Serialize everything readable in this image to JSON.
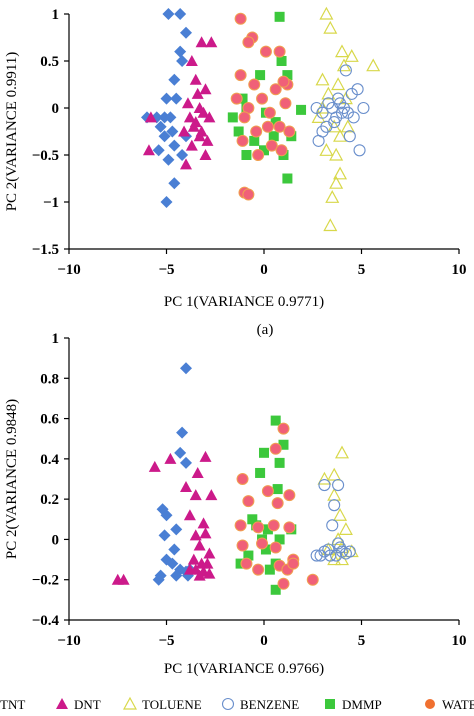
{
  "colors": {
    "TNT": "#4a7fd4",
    "DNT": "#cc1a8a",
    "TOLUENE": "#d8d84a",
    "BENZENE": "#6a8fcc",
    "DMMP": "#3cc83c",
    "WATER": "#f06078",
    "WATER_legend": "#f07030"
  },
  "legend": {
    "items": [
      {
        "label": "TNT",
        "marker": "diamond"
      },
      {
        "label": "DNT",
        "marker": "triangle"
      },
      {
        "label": "TOLUENE",
        "marker": "triangle-open"
      },
      {
        "label": "BENZENE",
        "marker": "circle-open"
      },
      {
        "label": "DMMP",
        "marker": "square"
      },
      {
        "label": "WATER",
        "marker": "circle"
      }
    ]
  },
  "chart_data": [
    {
      "type": "scatter",
      "caption": "(a)",
      "xlabel": "PC  1(VARIANCE  0.9771)",
      "ylabel": "PC  2(VARIANCE  0.9911)",
      "xlim": [
        -10,
        10
      ],
      "ylim": [
        -1.5,
        1
      ],
      "xticks": [
        -10,
        -5,
        0,
        5,
        10
      ],
      "xtick_labels": [
        "−10",
        "−5",
        "0",
        "5",
        "10"
      ],
      "yticks": [
        1,
        0.5,
        0,
        -0.5,
        -1,
        -1.5
      ],
      "ytick_labels": [
        "1",
        "0.5",
        "0",
        "−0.5",
        "−1",
        "−1.5"
      ],
      "series": [
        {
          "name": "TNT",
          "marker": "diamond",
          "points": [
            [
              -4.9,
              1.0
            ],
            [
              -4.3,
              1.0
            ],
            [
              -4.0,
              0.8
            ],
            [
              -4.3,
              0.6
            ],
            [
              -4.2,
              0.5
            ],
            [
              -4.6,
              0.3
            ],
            [
              -5.0,
              0.1
            ],
            [
              -4.5,
              0.1
            ],
            [
              -5.5,
              -0.1
            ],
            [
              -5.1,
              -0.1
            ],
            [
              -4.8,
              -0.1
            ],
            [
              -5.3,
              -0.2
            ],
            [
              -4.7,
              -0.25
            ],
            [
              -4.6,
              -0.4
            ],
            [
              -5.4,
              -0.45
            ],
            [
              -4.9,
              -0.55
            ],
            [
              -4.2,
              -0.5
            ],
            [
              -4.6,
              -0.8
            ],
            [
              -5.0,
              -1.0
            ],
            [
              -6.0,
              -0.1
            ],
            [
              -4.0,
              -0.3
            ],
            [
              -5.1,
              -0.3
            ]
          ]
        },
        {
          "name": "DNT",
          "marker": "triangle",
          "points": [
            [
              -3.2,
              0.7
            ],
            [
              -2.7,
              0.7
            ],
            [
              -3.7,
              0.5
            ],
            [
              -3.5,
              0.3
            ],
            [
              -3.0,
              0.2
            ],
            [
              -3.4,
              0.15
            ],
            [
              -3.9,
              0.05
            ],
            [
              -3.3,
              0.0
            ],
            [
              -3.8,
              -0.1
            ],
            [
              -3.1,
              -0.05
            ],
            [
              -2.8,
              -0.1
            ],
            [
              -3.6,
              -0.2
            ],
            [
              -4.1,
              -0.25
            ],
            [
              -3.3,
              -0.3
            ],
            [
              -2.9,
              -0.35
            ],
            [
              -3.7,
              -0.4
            ],
            [
              -3.0,
              -0.5
            ],
            [
              -4.0,
              -0.6
            ],
            [
              -3.5,
              -0.15
            ],
            [
              -5.9,
              -0.45
            ],
            [
              -5.8,
              -0.1
            ],
            [
              -3.2,
              -0.25
            ]
          ]
        },
        {
          "name": "TOLUENE",
          "marker": "triangle-open",
          "points": [
            [
              3.2,
              1.0
            ],
            [
              3.4,
              0.85
            ],
            [
              4.0,
              0.6
            ],
            [
              4.5,
              0.55
            ],
            [
              5.6,
              0.45
            ],
            [
              3.0,
              0.3
            ],
            [
              3.8,
              0.25
            ],
            [
              3.3,
              0.15
            ],
            [
              4.2,
              0.1
            ],
            [
              3.0,
              0.0
            ],
            [
              2.8,
              -0.1
            ],
            [
              3.6,
              -0.2
            ],
            [
              3.9,
              -0.3
            ],
            [
              4.3,
              -0.2
            ],
            [
              3.2,
              -0.45
            ],
            [
              3.7,
              -0.5
            ],
            [
              3.9,
              -0.7
            ],
            [
              3.7,
              -0.8
            ],
            [
              3.5,
              -0.95
            ],
            [
              3.4,
              -1.25
            ],
            [
              4.1,
              0.45
            ]
          ]
        },
        {
          "name": "BENZENE",
          "marker": "circle-open",
          "points": [
            [
              2.7,
              0.0
            ],
            [
              3.0,
              -0.05
            ],
            [
              3.3,
              0.05
            ],
            [
              3.5,
              0.0
            ],
            [
              3.7,
              -0.1
            ],
            [
              3.9,
              0.05
            ],
            [
              4.1,
              0.0
            ],
            [
              4.3,
              -0.05
            ],
            [
              4.5,
              0.15
            ],
            [
              4.8,
              0.2
            ],
            [
              5.1,
              0.0
            ],
            [
              4.6,
              -0.1
            ],
            [
              4.4,
              -0.3
            ],
            [
              2.8,
              -0.35
            ],
            [
              3.2,
              -0.2
            ],
            [
              4.2,
              0.4
            ],
            [
              4.9,
              -0.45
            ],
            [
              3.6,
              -0.15
            ],
            [
              4.0,
              -0.05
            ],
            [
              3.0,
              -0.25
            ],
            [
              3.8,
              0.1
            ]
          ]
        },
        {
          "name": "DMMP",
          "marker": "square",
          "points": [
            [
              0.8,
              0.97
            ],
            [
              0.9,
              0.5
            ],
            [
              1.2,
              0.35
            ],
            [
              -0.2,
              0.35
            ],
            [
              -1.1,
              0.1
            ],
            [
              -0.9,
              0.0
            ],
            [
              -1.6,
              -0.1
            ],
            [
              0.1,
              -0.05
            ],
            [
              1.9,
              -0.02
            ],
            [
              -1.3,
              -0.25
            ],
            [
              0.5,
              -0.3
            ],
            [
              1.4,
              -0.3
            ],
            [
              -0.5,
              -0.35
            ],
            [
              0.0,
              -0.45
            ],
            [
              -0.9,
              -0.5
            ],
            [
              1.0,
              -0.5
            ],
            [
              1.2,
              -0.75
            ],
            [
              0.6,
              -0.15
            ]
          ]
        },
        {
          "name": "WATER",
          "marker": "circle",
          "points": [
            [
              -1.2,
              0.95
            ],
            [
              -0.6,
              0.75
            ],
            [
              0.1,
              0.6
            ],
            [
              0.8,
              0.6
            ],
            [
              -1.2,
              0.35
            ],
            [
              -0.5,
              0.25
            ],
            [
              0.6,
              0.2
            ],
            [
              1.2,
              0.25
            ],
            [
              -1.4,
              0.1
            ],
            [
              -0.1,
              0.1
            ],
            [
              0.3,
              -0.05
            ],
            [
              -0.8,
              0.0
            ],
            [
              1.1,
              0.05
            ],
            [
              -1.0,
              -0.1
            ],
            [
              0.2,
              -0.2
            ],
            [
              -0.4,
              -0.25
            ],
            [
              0.8,
              -0.2
            ],
            [
              1.3,
              -0.25
            ],
            [
              -1.1,
              -0.35
            ],
            [
              0.4,
              -0.4
            ],
            [
              -0.3,
              -0.5
            ],
            [
              0.9,
              -0.45
            ],
            [
              -1.0,
              -0.9
            ],
            [
              -0.8,
              -0.92
            ],
            [
              -0.8,
              0.7
            ],
            [
              1.0,
              0.28
            ]
          ]
        }
      ]
    },
    {
      "type": "scatter",
      "caption": "",
      "xlabel": "PC  1(VARIANCE  0.9766)",
      "ylabel": "PC  2(VARIANCE  0.9848)",
      "xlim": [
        -10,
        10
      ],
      "ylim": [
        -0.4,
        1
      ],
      "xticks": [
        -10,
        -5,
        0,
        5,
        10
      ],
      "xtick_labels": [
        "−10",
        "−5",
        "0",
        "5",
        "10"
      ],
      "yticks": [
        1,
        0.8,
        0.6,
        0.4,
        0.2,
        0,
        -0.2,
        -0.4
      ],
      "ytick_labels": [
        "1",
        "0.8",
        "0.6",
        "0.4",
        "0.2",
        "0",
        "−0.2",
        "−0.4"
      ],
      "series": [
        {
          "name": "TNT",
          "marker": "diamond",
          "points": [
            [
              -4.0,
              0.85
            ],
            [
              -4.2,
              0.53
            ],
            [
              -4.3,
              0.43
            ],
            [
              -4.0,
              0.38
            ],
            [
              -5.2,
              0.15
            ],
            [
              -5.0,
              0.12
            ],
            [
              -4.5,
              0.05
            ],
            [
              -5.1,
              0.02
            ],
            [
              -4.6,
              -0.05
            ],
            [
              -5.0,
              -0.1
            ],
            [
              -4.7,
              -0.12
            ],
            [
              -4.3,
              -0.15
            ],
            [
              -4.0,
              -0.16
            ],
            [
              -3.8,
              -0.15
            ],
            [
              -5.3,
              -0.18
            ],
            [
              -3.9,
              -0.18
            ],
            [
              -4.5,
              -0.18
            ],
            [
              -5.4,
              -0.2
            ]
          ]
        },
        {
          "name": "DNT",
          "marker": "triangle",
          "points": [
            [
              -4.8,
              0.4
            ],
            [
              -5.6,
              0.36
            ],
            [
              -3.0,
              0.41
            ],
            [
              -3.4,
              0.33
            ],
            [
              -4.0,
              0.26
            ],
            [
              -3.5,
              0.22
            ],
            [
              -2.7,
              0.22
            ],
            [
              -3.8,
              0.12
            ],
            [
              -3.1,
              0.08
            ],
            [
              -3.5,
              0.02
            ],
            [
              -3.0,
              0.03
            ],
            [
              -3.3,
              -0.03
            ],
            [
              -2.8,
              -0.07
            ],
            [
              -3.6,
              -0.1
            ],
            [
              -3.2,
              -0.12
            ],
            [
              -2.9,
              -0.12
            ],
            [
              -3.5,
              -0.15
            ],
            [
              -3.8,
              -0.15
            ],
            [
              -3.1,
              -0.16
            ],
            [
              -2.8,
              -0.17
            ],
            [
              -7.2,
              -0.2
            ],
            [
              -7.5,
              -0.2
            ],
            [
              -3.3,
              -0.18
            ]
          ]
        },
        {
          "name": "TOLUENE",
          "marker": "triangle-open",
          "points": [
            [
              4.0,
              0.43
            ],
            [
              3.6,
              0.32
            ],
            [
              3.1,
              0.3
            ],
            [
              3.6,
              0.22
            ],
            [
              3.9,
              0.12
            ],
            [
              4.2,
              0.05
            ],
            [
              3.8,
              0.0
            ],
            [
              3.3,
              -0.05
            ],
            [
              4.0,
              -0.04
            ],
            [
              4.5,
              -0.06
            ],
            [
              3.6,
              -0.1
            ],
            [
              4.0,
              -0.1
            ]
          ]
        },
        {
          "name": "BENZENE",
          "marker": "circle-open",
          "points": [
            [
              3.1,
              0.27
            ],
            [
              3.8,
              0.27
            ],
            [
              3.6,
              0.17
            ],
            [
              3.5,
              0.07
            ],
            [
              3.8,
              -0.02
            ],
            [
              3.3,
              -0.05
            ],
            [
              3.1,
              -0.06
            ],
            [
              2.7,
              -0.08
            ],
            [
              2.9,
              -0.08
            ],
            [
              3.4,
              -0.08
            ],
            [
              3.7,
              -0.08
            ],
            [
              4.0,
              -0.06
            ],
            [
              4.2,
              -0.07
            ],
            [
              4.4,
              -0.06
            ],
            [
              3.9,
              -0.04
            ]
          ]
        },
        {
          "name": "DMMP",
          "marker": "square",
          "points": [
            [
              0.6,
              0.59
            ],
            [
              1.0,
              0.47
            ],
            [
              0.0,
              0.43
            ],
            [
              0.8,
              0.38
            ],
            [
              -0.2,
              0.33
            ],
            [
              0.7,
              0.25
            ],
            [
              1.4,
              0.05
            ],
            [
              -0.4,
              0.07
            ],
            [
              0.2,
              0.05
            ],
            [
              0.1,
              -0.05
            ],
            [
              0.8,
              0.0
            ],
            [
              -0.8,
              -0.08
            ],
            [
              0.6,
              -0.12
            ],
            [
              -1.2,
              -0.12
            ],
            [
              0.3,
              -0.15
            ],
            [
              0.6,
              -0.25
            ],
            [
              -0.6,
              0.1
            ],
            [
              -0.1,
              0.0
            ]
          ]
        },
        {
          "name": "WATER",
          "marker": "circle",
          "points": [
            [
              1.0,
              0.55
            ],
            [
              0.6,
              0.45
            ],
            [
              -1.1,
              0.3
            ],
            [
              0.2,
              0.24
            ],
            [
              1.3,
              0.22
            ],
            [
              -0.8,
              0.19
            ],
            [
              0.7,
              0.18
            ],
            [
              -1.2,
              0.07
            ],
            [
              -0.3,
              0.06
            ],
            [
              0.5,
              0.07
            ],
            [
              1.3,
              0.06
            ],
            [
              -1.1,
              -0.03
            ],
            [
              -0.1,
              -0.02
            ],
            [
              0.6,
              -0.04
            ],
            [
              1.5,
              -0.1
            ],
            [
              -0.9,
              -0.12
            ],
            [
              0.8,
              -0.13
            ],
            [
              -0.3,
              -0.15
            ],
            [
              1.2,
              -0.15
            ],
            [
              1.0,
              -0.22
            ],
            [
              2.5,
              -0.2
            ],
            [
              1.5,
              -0.12
            ]
          ]
        }
      ]
    }
  ]
}
